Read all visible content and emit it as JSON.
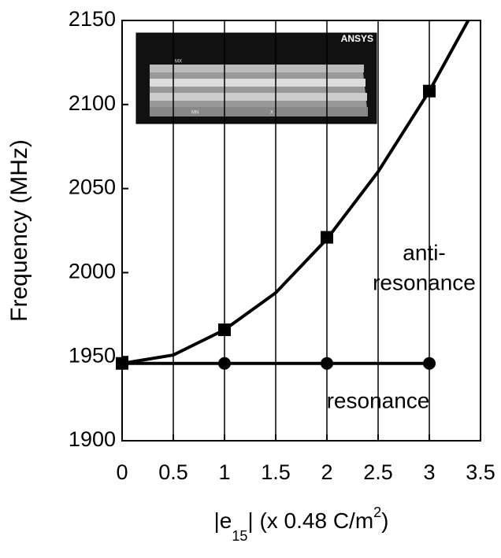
{
  "chart_data": {
    "type": "line",
    "ylabel": "Frequency (MHz)",
    "xlabel_parts": [
      "|e",
      "15",
      "| (x 0.48 C/m",
      "2",
      ")"
    ],
    "xlim": [
      0,
      3.5
    ],
    "xticks": [
      0,
      0.5,
      1,
      1.5,
      2,
      2.5,
      3,
      3.5
    ],
    "ylim": [
      1900,
      2150
    ],
    "yticks": [
      1900,
      1950,
      2000,
      2050,
      2100,
      2150
    ],
    "grid": "x",
    "color": "#000000",
    "series": [
      {
        "x": [
          0,
          1,
          2,
          3
        ],
        "values": [
          1946,
          1966,
          2021,
          2108
        ],
        "marker": "square",
        "line": false
      },
      {
        "x": [
          0,
          1,
          2,
          3
        ],
        "values": [
          1946,
          1946,
          1946,
          1946
        ],
        "marker": "circle",
        "line": true
      },
      {
        "x": [
          0,
          0.5,
          1,
          1.5,
          2,
          2.5,
          3,
          3.38
        ],
        "values": [
          1946,
          1951,
          1966,
          1988,
          2020,
          2060,
          2108,
          2150
        ],
        "marker": "none",
        "line": true
      }
    ],
    "annotations": [
      {
        "text": "anti-",
        "x": 2.95,
        "y": 2011
      },
      {
        "text": "resonance",
        "x": 2.95,
        "y": 1993
      },
      {
        "text": "resonance",
        "x": 2.5,
        "y": 1923
      }
    ],
    "inset": {
      "logo": "ANSYS",
      "labels": [
        "MX",
        "MN",
        "X"
      ]
    }
  }
}
